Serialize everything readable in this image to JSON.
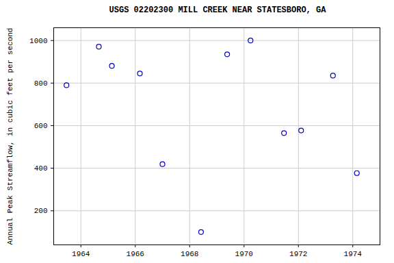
{
  "chart_data": {
    "type": "scatter",
    "title": "USGS 02202300 MILL CREEK NEAR STATESBORO, GA",
    "y_label": "Annual Peak Streamflow, in cubic feet per second",
    "x": [
      1963.47,
      1964.66,
      1965.14,
      1966.17,
      1967.0,
      1968.42,
      1969.38,
      1970.24,
      1971.47,
      1972.1,
      1973.27,
      1974.15
    ],
    "values": [
      790,
      971,
      881,
      845,
      419,
      100,
      935,
      1000,
      565,
      577,
      835,
      377
    ],
    "color": "#0000cc",
    "marker": "open circle",
    "xlim": [
      1963,
      1975
    ],
    "xticks": [
      1964,
      1966,
      1968,
      1970,
      1972,
      1974
    ],
    "ylim": [
      40,
      1060
    ],
    "yticks": [
      200,
      400,
      600,
      800,
      1000
    ],
    "grid": true
  }
}
